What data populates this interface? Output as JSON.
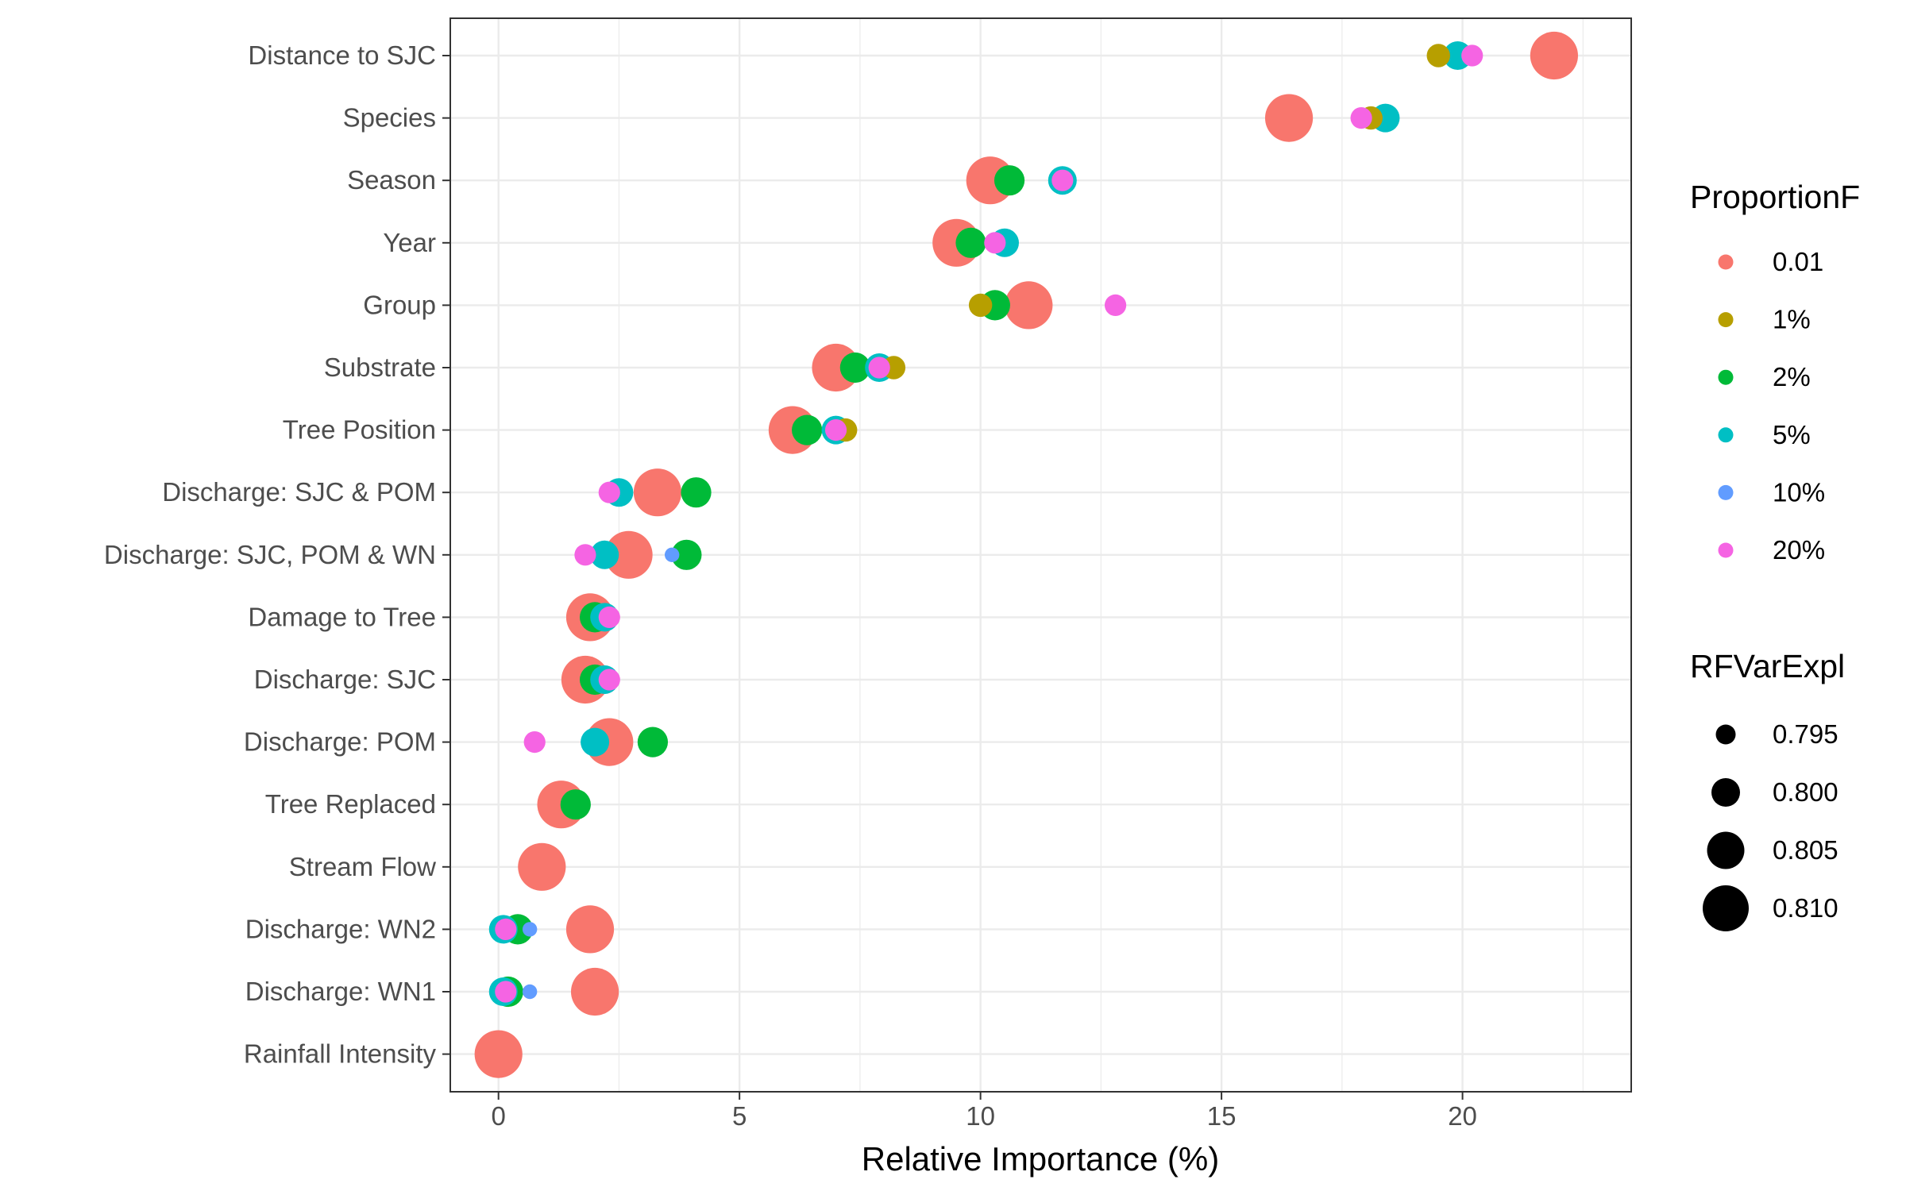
{
  "chart_data": {
    "type": "scatter",
    "xlabel": "Relative Importance (%)",
    "ylabel": "",
    "xlim": [
      -1,
      23.5
    ],
    "xticks": [
      0,
      5,
      10,
      15,
      20
    ],
    "grid": true,
    "legend_position": "right",
    "categories": [
      "Distance to SJC",
      "Species",
      "Season",
      "Year",
      "Group",
      "Substrate",
      "Tree Position",
      "Discharge: SJC & POM",
      "Discharge: SJC, POM & WN",
      "Damage to Tree",
      "Discharge: SJC",
      "Discharge: POM",
      "Tree Replaced",
      "Stream Flow",
      "Discharge: WN2",
      "Discharge: WN1",
      "Rainfall Intensity"
    ],
    "color_legend": {
      "title": "ProportionF",
      "entries": [
        {
          "label": "0.01",
          "color": "#F8766D"
        },
        {
          "label": "1%",
          "color": "#B79F00"
        },
        {
          "label": "2%",
          "color": "#00BA38"
        },
        {
          "label": "5%",
          "color": "#00BFC4"
        },
        {
          "label": "10%",
          "color": "#619CFF"
        },
        {
          "label": "20%",
          "color": "#F564E3"
        }
      ]
    },
    "size_legend": {
      "title": "RFVarExpl",
      "entries": [
        "0.795",
        "0.800",
        "0.805",
        "0.810"
      ],
      "values": [
        0.795,
        0.8,
        0.805,
        0.81
      ]
    },
    "series": [
      {
        "name": "10%",
        "rf": 0.792,
        "values": [
          null,
          null,
          null,
          null,
          null,
          null,
          null,
          null,
          3.6,
          null,
          null,
          null,
          null,
          null,
          0.65,
          0.65,
          null
        ]
      },
      {
        "name": "20%",
        "rf": 0.796,
        "values": [
          20.2,
          17.9,
          11.7,
          10.3,
          12.8,
          7.9,
          7.0,
          2.3,
          1.8,
          2.3,
          2.3,
          0.75,
          null,
          null,
          0.15,
          0.15,
          null
        ]
      },
      {
        "name": "1%",
        "rf": 0.797,
        "values": [
          19.5,
          18.1,
          null,
          null,
          10.0,
          8.2,
          7.2,
          null,
          null,
          null,
          null,
          null,
          null,
          null,
          null,
          null,
          null
        ]
      },
      {
        "name": "5%",
        "rf": 0.8,
        "values": [
          19.9,
          18.4,
          11.7,
          10.5,
          null,
          7.9,
          7.0,
          2.5,
          2.2,
          2.2,
          2.2,
          2.0,
          null,
          null,
          0.1,
          0.1,
          null
        ]
      },
      {
        "name": "2%",
        "rf": 0.801,
        "values": [
          null,
          null,
          10.6,
          9.8,
          10.3,
          7.4,
          6.4,
          4.1,
          3.9,
          2.0,
          2.0,
          3.2,
          1.6,
          null,
          0.4,
          0.2,
          null
        ]
      },
      {
        "name": "0.01",
        "rf": 0.811,
        "values": [
          21.9,
          16.4,
          10.2,
          9.5,
          11.0,
          7.0,
          6.1,
          3.3,
          2.7,
          1.9,
          1.8,
          2.3,
          1.3,
          0.9,
          1.9,
          2.0,
          0.0
        ]
      }
    ]
  }
}
